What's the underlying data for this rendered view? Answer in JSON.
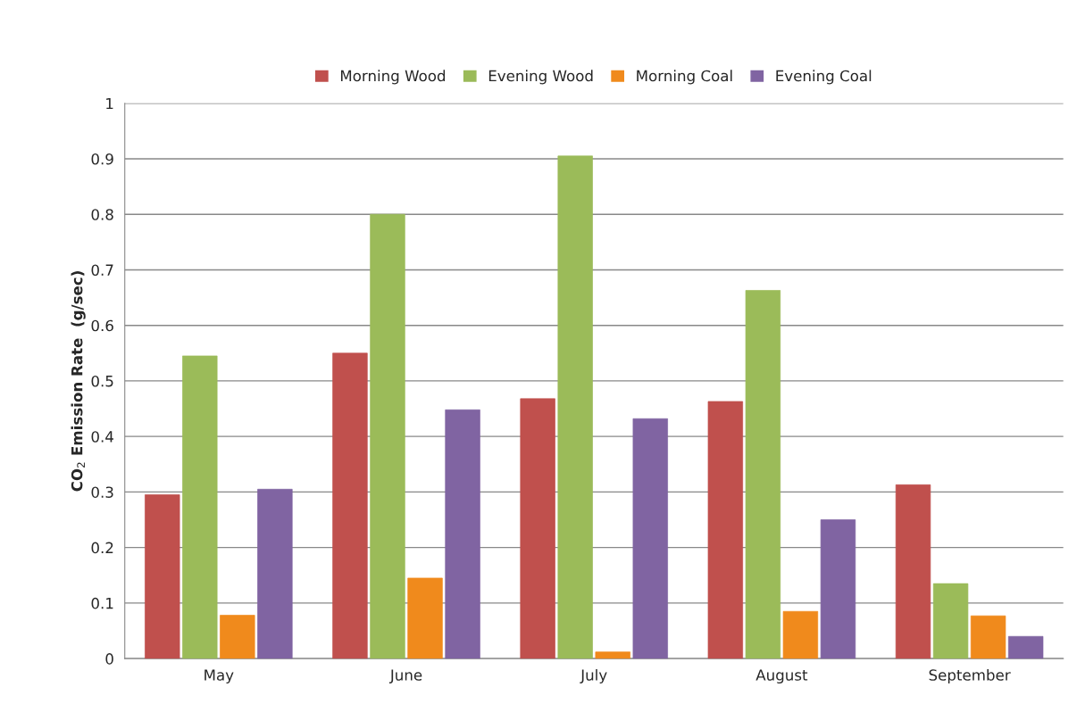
{
  "chart_data": {
    "type": "bar",
    "ylabel": "CO$_{2}$ Emission Rate  (g/sec)",
    "categories": [
      "May",
      "June",
      "July",
      "August",
      "September"
    ],
    "series": [
      {
        "name": "Morning Wood",
        "color": "#c0504d",
        "values": [
          0.295,
          0.55,
          0.468,
          0.463,
          0.313
        ]
      },
      {
        "name": "Evening Wood",
        "color": "#9bbb59",
        "values": [
          0.545,
          0.8,
          0.905,
          0.663,
          0.135
        ]
      },
      {
        "name": "Morning Coal",
        "color": "#f08a1c",
        "values": [
          0.078,
          0.145,
          0.012,
          0.085,
          0.077
        ]
      },
      {
        "name": "Evening Coal",
        "color": "#8064a2",
        "values": [
          0.305,
          0.448,
          0.432,
          0.25,
          0.04
        ]
      }
    ],
    "ylim": [
      0,
      1
    ],
    "yticks": [
      0,
      0.1,
      0.2,
      0.3,
      0.4,
      0.5,
      0.6,
      0.7,
      0.8,
      0.9,
      1
    ],
    "grid": "y",
    "legend": "top"
  }
}
